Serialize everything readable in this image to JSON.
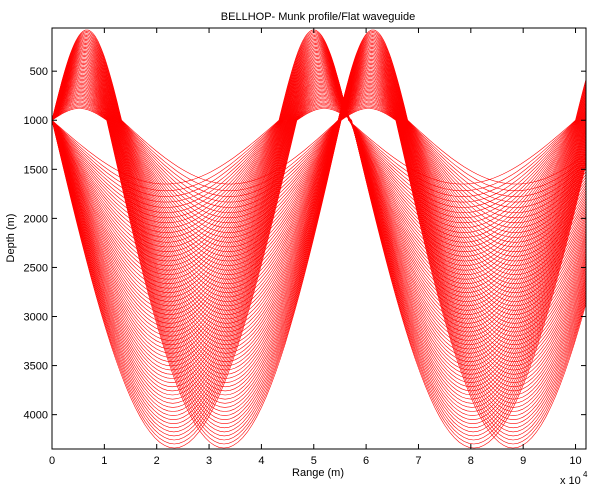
{
  "chart_data": {
    "type": "line",
    "title": "BELLHOP- Munk profile/Flat waveguide",
    "xlabel": "Range (m)",
    "ylabel": "Depth (m)",
    "x_multiplier_base": "x 10",
    "x_multiplier_exp": "4",
    "xlim": [
      0,
      10.2
    ],
    "ylim": [
      60,
      4350
    ],
    "y_reversed": true,
    "xticks": [
      "0",
      "1",
      "2",
      "3",
      "4",
      "5",
      "6",
      "7",
      "8",
      "9",
      "10"
    ],
    "yticks": [
      "500",
      "1000",
      "1500",
      "2000",
      "2500",
      "3000",
      "3500",
      "4000"
    ],
    "grid": false,
    "ray_color": "#ff0000",
    "source_depth": 1000,
    "ray_families": [
      {
        "name": "",
        "turn_depth_min": 80,
        "turn_depth_max": 880,
        "first_turn_range_min": 0.55,
        "first_turn_range_max": 0.7
      },
      {
        "name": "",
        "turn_depth_min": 1650,
        "turn_depth_max": 4340,
        "first_turn_range_min": 2.4,
        "first_turn_range_max": 2.5
      }
    ]
  }
}
